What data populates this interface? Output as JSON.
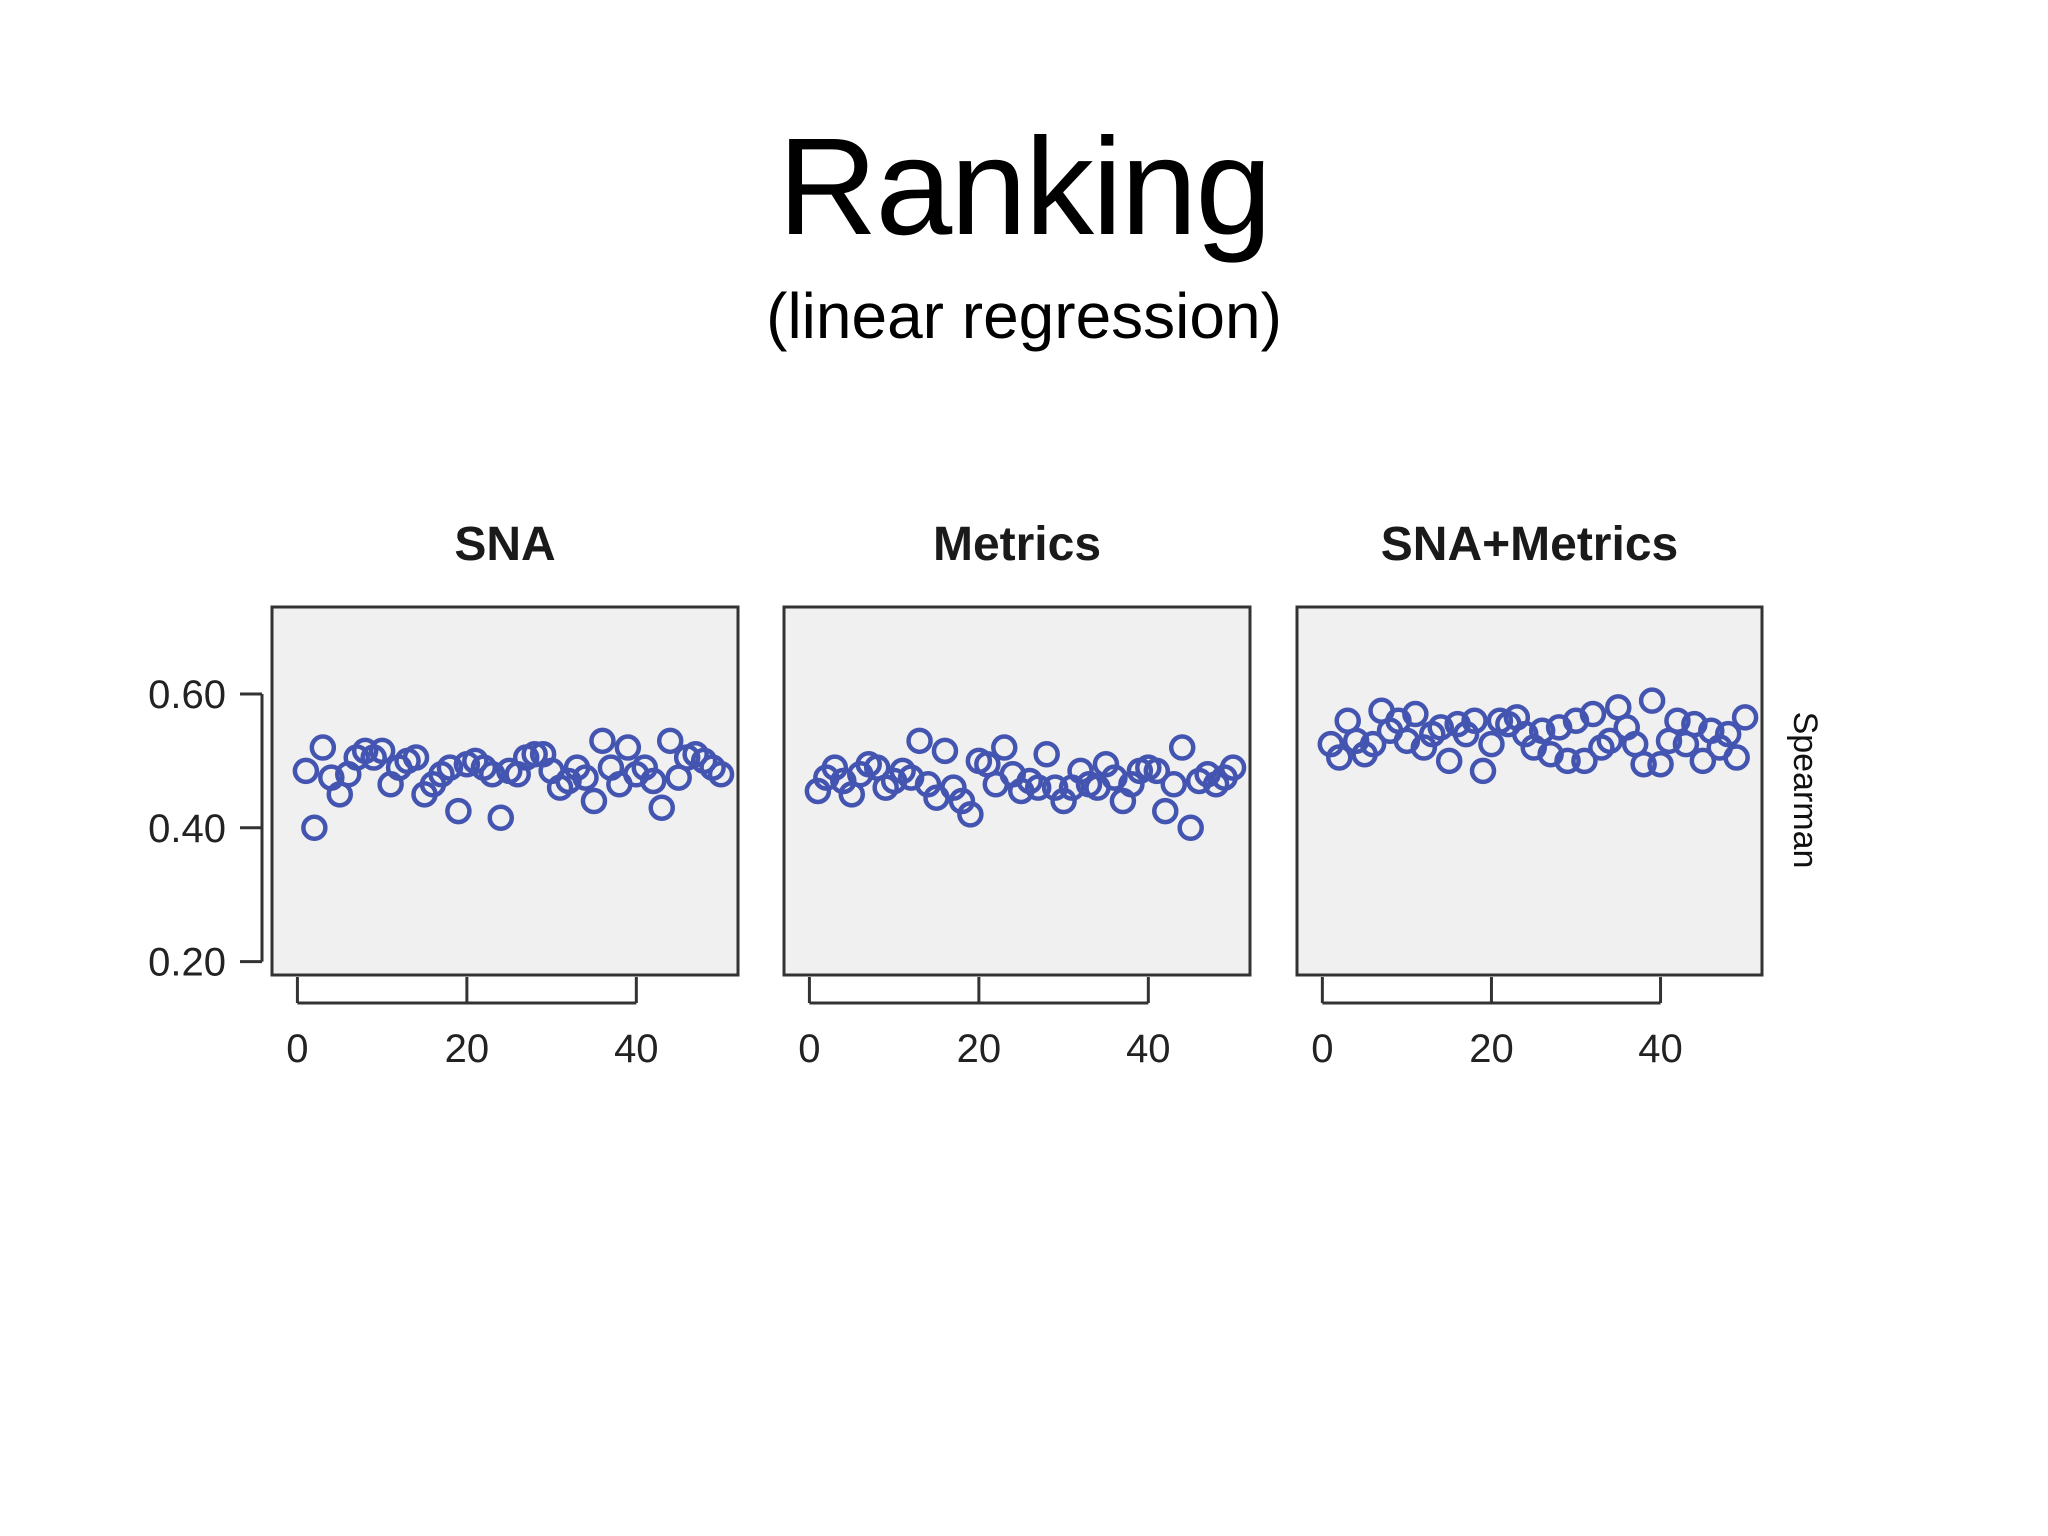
{
  "slide": {
    "title": "Ranking",
    "subtitle": "(linear regression)"
  },
  "chart_data": [
    {
      "type": "scatter",
      "title": "SNA",
      "ylabel": "",
      "xticks": [
        "0",
        "20",
        "40"
      ],
      "yticks": [
        "0.60",
        "0.40",
        "0.20"
      ],
      "ylim": [
        0.18,
        0.73
      ],
      "xlim": [
        -3,
        52
      ],
      "grid": false,
      "marker_color": "#4355b0",
      "panel_background": "#f0f0f0",
      "x": [
        1,
        2,
        3,
        4,
        5,
        6,
        7,
        8,
        9,
        10,
        11,
        12,
        13,
        14,
        15,
        16,
        17,
        18,
        19,
        20,
        21,
        22,
        23,
        24,
        25,
        26,
        27,
        28,
        29,
        30,
        31,
        32,
        33,
        34,
        35,
        36,
        37,
        38,
        39,
        40,
        41,
        42,
        43,
        44,
        45,
        46,
        47,
        48,
        49,
        50
      ],
      "y": [
        0.485,
        0.4,
        0.52,
        0.475,
        0.45,
        0.48,
        0.505,
        0.515,
        0.505,
        0.515,
        0.465,
        0.49,
        0.5,
        0.505,
        0.45,
        0.465,
        0.48,
        0.49,
        0.425,
        0.495,
        0.5,
        0.49,
        0.48,
        0.415,
        0.485,
        0.48,
        0.505,
        0.51,
        0.51,
        0.485,
        0.46,
        0.47,
        0.49,
        0.475,
        0.44,
        0.53,
        0.49,
        0.465,
        0.52,
        0.48,
        0.49,
        0.47,
        0.43,
        0.53,
        0.475,
        0.505,
        0.51,
        0.5,
        0.49,
        0.48
      ]
    },
    {
      "type": "scatter",
      "title": "Metrics",
      "ylabel": "",
      "xticks": [
        "0",
        "20",
        "40"
      ],
      "yticks": [],
      "ylim": [
        0.18,
        0.73
      ],
      "xlim": [
        -3,
        52
      ],
      "grid": false,
      "marker_color": "#4355b0",
      "panel_background": "#f0f0f0",
      "x": [
        1,
        2,
        3,
        4,
        5,
        6,
        7,
        8,
        9,
        10,
        11,
        12,
        13,
        14,
        15,
        16,
        17,
        18,
        19,
        20,
        21,
        22,
        23,
        24,
        25,
        26,
        27,
        28,
        29,
        30,
        31,
        32,
        33,
        34,
        35,
        36,
        37,
        38,
        39,
        40,
        41,
        42,
        43,
        44,
        45,
        46,
        47,
        48,
        49,
        50
      ],
      "y": [
        0.455,
        0.475,
        0.49,
        0.47,
        0.45,
        0.48,
        0.495,
        0.49,
        0.46,
        0.47,
        0.485,
        0.475,
        0.53,
        0.465,
        0.445,
        0.515,
        0.46,
        0.44,
        0.42,
        0.5,
        0.495,
        0.465,
        0.52,
        0.48,
        0.455,
        0.47,
        0.46,
        0.51,
        0.46,
        0.44,
        0.46,
        0.485,
        0.465,
        0.46,
        0.495,
        0.475,
        0.44,
        0.465,
        0.485,
        0.49,
        0.485,
        0.425,
        0.465,
        0.52,
        0.4,
        0.47,
        0.48,
        0.465,
        0.475,
        0.49
      ]
    },
    {
      "type": "scatter",
      "title": "SNA+Metrics",
      "ylabel": "Spearman",
      "xticks": [
        "0",
        "20",
        "40"
      ],
      "yticks": [],
      "ylim": [
        0.18,
        0.73
      ],
      "xlim": [
        -3,
        52
      ],
      "grid": false,
      "marker_color": "#4355b0",
      "panel_background": "#f0f0f0",
      "x": [
        1,
        2,
        3,
        4,
        5,
        6,
        7,
        8,
        9,
        10,
        11,
        12,
        13,
        14,
        15,
        16,
        17,
        18,
        19,
        20,
        21,
        22,
        23,
        24,
        25,
        26,
        27,
        28,
        29,
        30,
        31,
        32,
        33,
        34,
        35,
        36,
        37,
        38,
        39,
        40,
        41,
        42,
        43,
        44,
        45,
        46,
        47,
        48,
        49,
        50
      ],
      "y": [
        0.525,
        0.505,
        0.56,
        0.53,
        0.51,
        0.525,
        0.575,
        0.545,
        0.56,
        0.53,
        0.57,
        0.52,
        0.54,
        0.55,
        0.5,
        0.555,
        0.54,
        0.56,
        0.485,
        0.525,
        0.56,
        0.555,
        0.565,
        0.54,
        0.52,
        0.545,
        0.51,
        0.55,
        0.5,
        0.56,
        0.5,
        0.57,
        0.52,
        0.53,
        0.58,
        0.55,
        0.525,
        0.495,
        0.59,
        0.495,
        0.53,
        0.56,
        0.525,
        0.555,
        0.5,
        0.545,
        0.52,
        0.54,
        0.505,
        0.565
      ]
    }
  ]
}
